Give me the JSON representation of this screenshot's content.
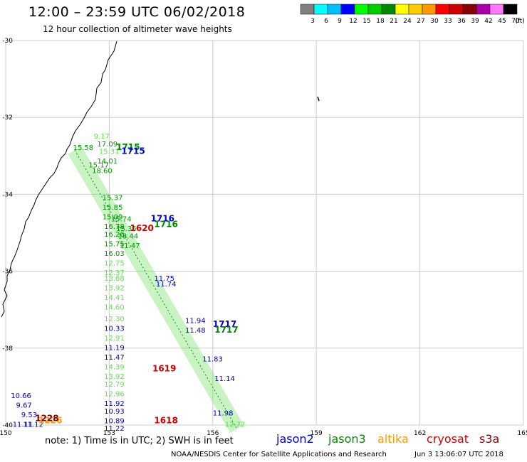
{
  "header": {
    "title": "12:00 – 23:59 UTC 06/02/2018",
    "subtitle": "12 hour collection of altimeter wave heights"
  },
  "colorbar": {
    "unit": "(ft)",
    "bins": [
      {
        "label": "3",
        "color": "#808080"
      },
      {
        "label": "6",
        "color": "#00ffff"
      },
      {
        "label": "9",
        "color": "#00bfff"
      },
      {
        "label": "12",
        "color": "#0000ff"
      },
      {
        "label": "15",
        "color": "#00ff00"
      },
      {
        "label": "18",
        "color": "#00cc00"
      },
      {
        "label": "21",
        "color": "#008800"
      },
      {
        "label": "24",
        "color": "#ffff00"
      },
      {
        "label": "27",
        "color": "#ffcc00"
      },
      {
        "label": "30",
        "color": "#ff9900"
      },
      {
        "label": "33",
        "color": "#ff0000"
      },
      {
        "label": "36",
        "color": "#cc0000"
      },
      {
        "label": "39",
        "color": "#880000"
      },
      {
        "label": "42",
        "color": "#aa00aa"
      },
      {
        "label": "45",
        "color": "#ff77ff"
      },
      {
        "label": "70",
        "color": "#000000"
      }
    ]
  },
  "map_axes": {
    "lon_ticks": [
      "150",
      "153",
      "156",
      "159",
      "162",
      "165"
    ],
    "lat_ticks": [
      "-30",
      "-32",
      "-34",
      "-36",
      "-38",
      "-40"
    ],
    "lon_range": [
      150,
      165
    ],
    "lat_range": [
      -40,
      -30
    ]
  },
  "colors": {
    "jason2": "#0000cc",
    "jason3": "#008800",
    "altika": "#ff9900",
    "cryosat": "#cc0000",
    "s3a": "#880000",
    "wave_light": "#66dd55",
    "wave_green": "#009900",
    "grid": "#cccccc"
  },
  "time_labels": [
    {
      "text": "1715",
      "sat": "jason3",
      "lon": 153.2,
      "lat": -32.85
    },
    {
      "text": "1715",
      "sat": "jason2",
      "lon": 153.35,
      "lat": -32.95
    },
    {
      "text": "1716",
      "sat": "jason2",
      "lon": 154.2,
      "lat": -34.7
    },
    {
      "text": "1716",
      "sat": "jason3",
      "lon": 154.3,
      "lat": -34.85
    },
    {
      "text": "1620",
      "sat": "cryosat",
      "lon": 153.6,
      "lat": -34.95
    },
    {
      "text": "1717",
      "sat": "jason2",
      "lon": 156.0,
      "lat": -37.45
    },
    {
      "text": "1717",
      "sat": "jason3",
      "lon": 156.05,
      "lat": -37.6
    },
    {
      "text": "1619",
      "sat": "cryosat",
      "lon": 154.25,
      "lat": -38.6
    },
    {
      "text": "1618",
      "sat": "cryosat",
      "lon": 154.3,
      "lat": -39.95
    },
    {
      "text": "1226",
      "sat": "altika",
      "lon": 150.95,
      "lat": -39.95
    },
    {
      "text": "1228",
      "sat": "s3a",
      "lon": 150.85,
      "lat": -39.9
    }
  ],
  "swh_labels": [
    {
      "text": "9.17",
      "color": "wave_light",
      "lon": 152.55,
      "lat": -32.55
    },
    {
      "text": "15.58",
      "color": "wave_green",
      "lon": 151.95,
      "lat": -32.85
    },
    {
      "text": "17.09",
      "color": "wave_green",
      "lon": 152.65,
      "lat": -32.75
    },
    {
      "text": "15.31",
      "color": "wave_light",
      "lon": 152.7,
      "lat": -32.95
    },
    {
      "text": "14.01",
      "color": "wave_green",
      "lon": 152.65,
      "lat": -33.2
    },
    {
      "text": "15.17",
      "color": "wave_green",
      "lon": 152.4,
      "lat": -33.3
    },
    {
      "text": "18.60",
      "color": "wave_green",
      "lon": 152.5,
      "lat": -33.45
    },
    {
      "text": "15.37",
      "color": "wave_green",
      "lon": 152.8,
      "lat": -34.15
    },
    {
      "text": "15.85",
      "color": "wave_green",
      "lon": 152.8,
      "lat": -34.4
    },
    {
      "text": "15.09",
      "color": "wave_green",
      "lon": 152.8,
      "lat": -34.65
    },
    {
      "text": "15.74",
      "color": "wave_green",
      "lon": 153.05,
      "lat": -34.7
    },
    {
      "text": "16.78",
      "color": "wave_green",
      "lon": 152.85,
      "lat": -34.9
    },
    {
      "text": "15.35",
      "color": "wave_green",
      "lon": 153.2,
      "lat": -34.95
    },
    {
      "text": "16.26",
      "color": "wave_green",
      "lon": 152.85,
      "lat": -35.1
    },
    {
      "text": "18.44",
      "color": "wave_green",
      "lon": 153.25,
      "lat": -35.15
    },
    {
      "text": "15.75",
      "color": "wave_green",
      "lon": 152.85,
      "lat": -35.35
    },
    {
      "text": "11.47",
      "color": "wave_green",
      "lon": 153.3,
      "lat": -35.4
    },
    {
      "text": "16.03",
      "color": "wave_green",
      "lon": 152.85,
      "lat": -35.6
    },
    {
      "text": "12.75",
      "color": "wave_light",
      "lon": 152.85,
      "lat": -35.85
    },
    {
      "text": "12.37",
      "color": "wave_light",
      "lon": 152.85,
      "lat": -36.1
    },
    {
      "text": "13.68",
      "color": "wave_light",
      "lon": 152.85,
      "lat": -36.25
    },
    {
      "text": "13.92",
      "color": "wave_light",
      "lon": 152.85,
      "lat": -36.5
    },
    {
      "text": "14.41",
      "color": "wave_light",
      "lon": 152.85,
      "lat": -36.75
    },
    {
      "text": "14.60",
      "color": "wave_light",
      "lon": 152.85,
      "lat": -37.0
    },
    {
      "text": "12.30",
      "color": "wave_light",
      "lon": 152.85,
      "lat": -37.3
    },
    {
      "text": "10.33",
      "color": "jason2",
      "lon": 152.85,
      "lat": -37.55
    },
    {
      "text": "12.91",
      "color": "wave_light",
      "lon": 152.85,
      "lat": -37.8
    },
    {
      "text": "11.19",
      "color": "jason2",
      "lon": 152.85,
      "lat": -38.05
    },
    {
      "text": "11.47",
      "color": "jason2",
      "lon": 152.85,
      "lat": -38.3
    },
    {
      "text": "14.39",
      "color": "wave_light",
      "lon": 152.85,
      "lat": -38.55
    },
    {
      "text": "13.92",
      "color": "wave_light",
      "lon": 152.85,
      "lat": -38.8
    },
    {
      "text": "12.79",
      "color": "wave_light",
      "lon": 152.85,
      "lat": -39.0
    },
    {
      "text": "12.96",
      "color": "wave_light",
      "lon": 152.85,
      "lat": -39.25
    },
    {
      "text": "11.92",
      "color": "jason2",
      "lon": 152.85,
      "lat": -39.5
    },
    {
      "text": "10.93",
      "color": "jason2",
      "lon": 152.85,
      "lat": -39.7
    },
    {
      "text": "10.89",
      "color": "jason2",
      "lon": 152.85,
      "lat": -39.95
    },
    {
      "text": "11.22",
      "color": "jason2",
      "lon": 152.85,
      "lat": -40.15
    },
    {
      "text": "11.75",
      "color": "jason2",
      "lon": 154.3,
      "lat": -36.25
    },
    {
      "text": "11.74",
      "color": "jason2",
      "lon": 154.35,
      "lat": -36.4
    },
    {
      "text": "11.94",
      "color": "jason2",
      "lon": 155.2,
      "lat": -37.35
    },
    {
      "text": "11.48",
      "color": "jason2",
      "lon": 155.2,
      "lat": -37.6
    },
    {
      "text": "11.83",
      "color": "jason2",
      "lon": 155.7,
      "lat": -38.35
    },
    {
      "text": "11.14",
      "color": "jason2",
      "lon": 156.05,
      "lat": -38.85
    },
    {
      "text": "11.98",
      "color": "jason2",
      "lon": 156.0,
      "lat": -39.75
    },
    {
      "text": "12.72",
      "color": "wave_light",
      "lon": 156.35,
      "lat": -40.05
    },
    {
      "text": "10.66",
      "color": "jason2",
      "lon": 150.15,
      "lat": -39.3
    },
    {
      "text": "9.67",
      "color": "jason2",
      "lon": 150.3,
      "lat": -39.55
    },
    {
      "text": "9.53",
      "color": "jason2",
      "lon": 150.45,
      "lat": -39.8
    },
    {
      "text": "11.11",
      "color": "jason2",
      "lon": 150.2,
      "lat": -40.05
    },
    {
      "text": "11.12",
      "color": "jason2",
      "lon": 150.5,
      "lat": -40.05
    }
  ],
  "footer": {
    "note": "note:  1) Time is in UTC;  2) SWH is in feet",
    "legend": [
      {
        "name": "jason2",
        "color": "#0000cc"
      },
      {
        "name": "jason3",
        "color": "#008800"
      },
      {
        "name": "altika",
        "color": "#ff9900"
      },
      {
        "name": "cryosat",
        "color": "#cc0000"
      },
      {
        "name": "s3a",
        "color": "#880000"
      }
    ],
    "credit": "NOAA/NESDIS Center for Satellite Applications and Research",
    "generated": "Jun  3 13:06:07 UTC 2018"
  }
}
